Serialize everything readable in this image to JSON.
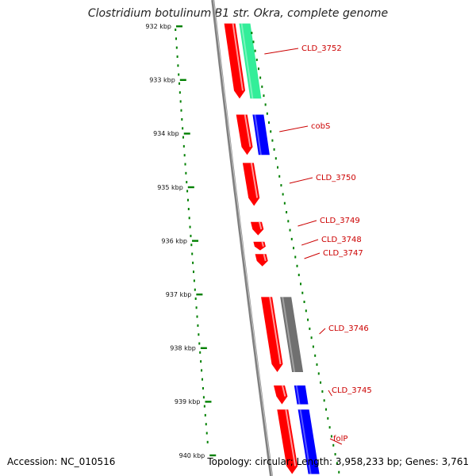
{
  "title": "Clostridium botulinum B1 str. Okra, complete genome",
  "accession": "Accession: NC_010516",
  "summary": "Topology: circular; Length: 3,958,233 bp; Genes: 3,761",
  "colors": {
    "ruler": "#008000",
    "backbone": "#808080",
    "forward_strand": "#ff0000",
    "label": "#cc0000",
    "cog_green": "#33ee99",
    "cog_blue": "#0000ff",
    "cog_gray": "#707070"
  },
  "ticks": [
    {
      "label": "932 kbp",
      "kbp": 932
    },
    {
      "label": "933 kbp",
      "kbp": 933
    },
    {
      "label": "934 kbp",
      "kbp": 934
    },
    {
      "label": "935 kbp",
      "kbp": 935
    },
    {
      "label": "936 kbp",
      "kbp": 936
    },
    {
      "label": "937 kbp",
      "kbp": 937
    },
    {
      "label": "938 kbp",
      "kbp": 938
    },
    {
      "label": "939 kbp",
      "kbp": 939
    },
    {
      "label": "940 kbp",
      "kbp": 940
    }
  ],
  "genes": [
    {
      "name": "CLD_3752",
      "start_kbp": 931.95,
      "end_kbp": 933.35,
      "category": "cog_green"
    },
    {
      "name": "cobS",
      "start_kbp": 933.65,
      "end_kbp": 934.4,
      "category": "cog_blue"
    },
    {
      "name": "CLD_3750",
      "start_kbp": 934.55,
      "end_kbp": 935.35,
      "category": ""
    },
    {
      "name": "CLD_3749",
      "start_kbp": 935.65,
      "end_kbp": 935.9,
      "category": ""
    },
    {
      "name": "CLD_3748",
      "start_kbp": 936.02,
      "end_kbp": 936.18,
      "category": ""
    },
    {
      "name": "CLD_3747",
      "start_kbp": 936.25,
      "end_kbp": 936.48,
      "category": ""
    },
    {
      "name": "CLD_3746",
      "start_kbp": 937.05,
      "end_kbp": 938.45,
      "category": "cog_gray"
    },
    {
      "name": "CLD_3745",
      "start_kbp": 938.7,
      "end_kbp": 939.05,
      "category": "cog_blue"
    },
    {
      "name": "folP",
      "start_kbp": 939.15,
      "end_kbp": 940.35,
      "category": "cog_blue"
    }
  ]
}
